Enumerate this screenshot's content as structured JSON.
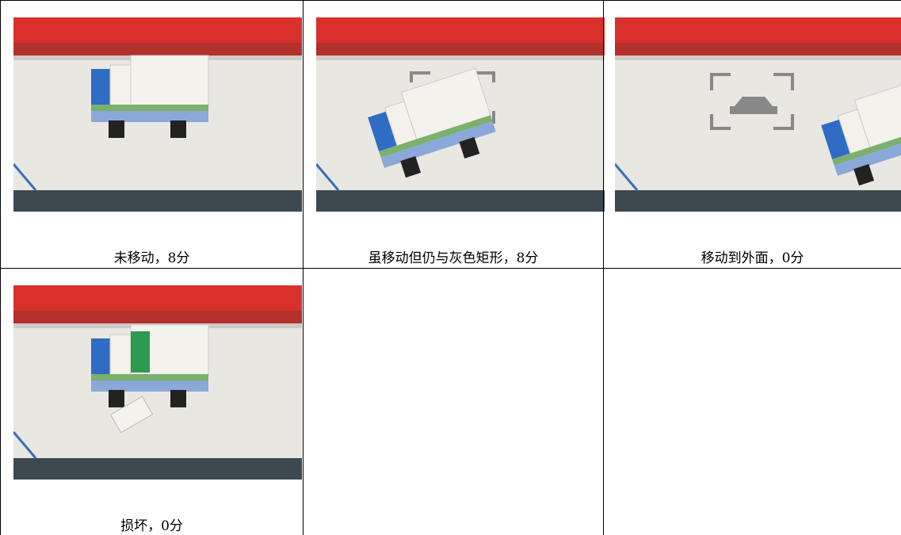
{
  "table": {
    "rows": [
      [
        "未移动，8分",
        "虽移动但仍与灰色矩形，8分",
        "移动到外面，0分"
      ],
      [
        "损坏，0分"
      ]
    ]
  }
}
